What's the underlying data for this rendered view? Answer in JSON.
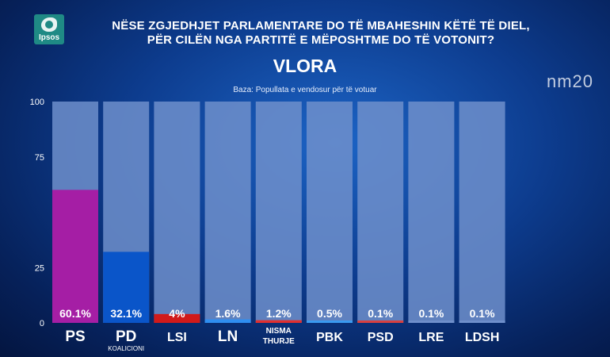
{
  "header": {
    "logo_text": "Ipsos",
    "question_line1": "NËSE ZGJEDHJET PARLAMENTARE DO TË MBAHESHIN KËTË TË DIEL,",
    "question_line2": "PËR CILËN NGA PARTITË E MËPOSHTME DO TË VOTONIT?",
    "region": "VLORA",
    "base": "Baza: Popullata e vendosur për të votuar",
    "watermark": "nm20"
  },
  "colors": {
    "track": "#6f8fcb",
    "PS": "#a51ea5",
    "PD": "#0a55c9",
    "LSI": "#d11a1a",
    "LN": "#2f8ef0",
    "NISMA": "#e03030",
    "PBK": "#3a9af0",
    "PSD": "#d84040",
    "LRE": "#6f8fcb",
    "LDSH": "#6f8fcb"
  },
  "chart_data": {
    "type": "bar",
    "categories": [
      "PS",
      "PD",
      "LSI",
      "LN",
      "NISMA",
      "PBK",
      "PSD",
      "LRE",
      "LDSH"
    ],
    "sublabels": [
      "",
      "KOALICIONI",
      "",
      "",
      "THURJE",
      "",
      "",
      "",
      ""
    ],
    "values": [
      60.1,
      32.1,
      4,
      1.6,
      1.2,
      0.5,
      0.1,
      0.1,
      0.1
    ],
    "value_labels": [
      "60.1%",
      "32.1%",
      "4%",
      "1.6%",
      "1.2%",
      "0.5%",
      "0.1%",
      "0.1%",
      "0.1%"
    ],
    "yticks": [
      0,
      25,
      75,
      100
    ],
    "ylim": [
      0,
      100
    ],
    "title": "VLORA",
    "xlabel": "",
    "ylabel": "",
    "grid": false,
    "legend": "none"
  }
}
